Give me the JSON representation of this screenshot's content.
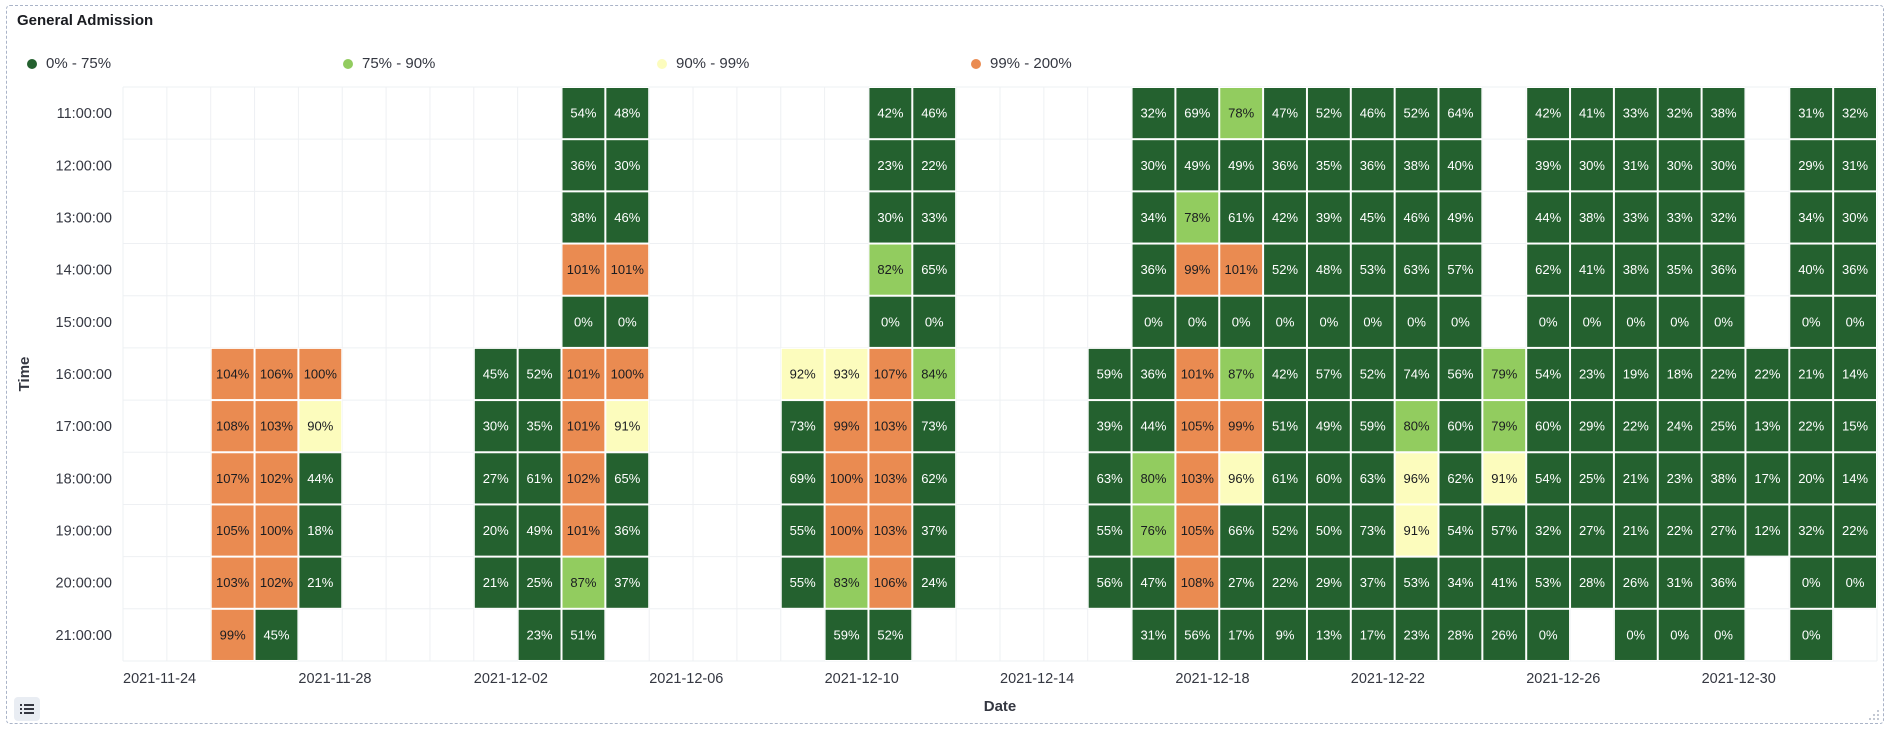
{
  "panel": {
    "title": "General Admission"
  },
  "chart_data": {
    "type": "heatmap",
    "title": "General Admission",
    "xlabel": "Date",
    "ylabel": "Time",
    "x_start": "2021-11-24",
    "x_ticks": [
      "2021-11-24",
      "2021-11-28",
      "2021-12-02",
      "2021-12-06",
      "2021-12-10",
      "2021-12-14",
      "2021-12-18",
      "2021-12-22",
      "2021-12-26",
      "2021-12-30"
    ],
    "y": [
      "11:00:00",
      "12:00:00",
      "13:00:00",
      "14:00:00",
      "15:00:00",
      "16:00:00",
      "17:00:00",
      "18:00:00",
      "19:00:00",
      "20:00:00",
      "21:00:00"
    ],
    "legend": [
      {
        "label": "0% - 75%",
        "color": "#24612f",
        "min": 0,
        "max": 75
      },
      {
        "label": "75% - 90%",
        "color": "#92cc5f",
        "min": 75,
        "max": 90
      },
      {
        "label": "90% - 99%",
        "color": "#fcfcbd",
        "min": 90,
        "max": 99
      },
      {
        "label": "99% - 200%",
        "color": "#ea8b51",
        "min": 99,
        "max": 200
      }
    ],
    "values": [
      [
        "",
        "",
        "",
        "",
        "",
        "",
        "",
        "",
        "",
        "",
        "54%",
        "48%",
        "",
        "",
        "",
        "",
        "",
        "42%",
        "46%",
        "",
        "",
        "",
        "",
        "32%",
        "69%",
        "78%",
        "47%",
        "52%",
        "46%",
        "52%",
        "64%",
        "",
        "42%",
        "41%",
        "33%",
        "32%",
        "38%",
        "",
        "31%",
        "32%"
      ],
      [
        "",
        "",
        "",
        "",
        "",
        "",
        "",
        "",
        "",
        "",
        "36%",
        "30%",
        "",
        "",
        "",
        "",
        "",
        "23%",
        "22%",
        "",
        "",
        "",
        "",
        "30%",
        "49%",
        "49%",
        "36%",
        "35%",
        "36%",
        "38%",
        "40%",
        "",
        "39%",
        "30%",
        "31%",
        "30%",
        "30%",
        "",
        "29%",
        "31%"
      ],
      [
        "",
        "",
        "",
        "",
        "",
        "",
        "",
        "",
        "",
        "",
        "38%",
        "46%",
        "",
        "",
        "",
        "",
        "",
        "30%",
        "33%",
        "",
        "",
        "",
        "",
        "34%",
        "78%",
        "61%",
        "42%",
        "39%",
        "45%",
        "46%",
        "49%",
        "",
        "44%",
        "38%",
        "33%",
        "33%",
        "32%",
        "",
        "34%",
        "30%"
      ],
      [
        "",
        "",
        "",
        "",
        "",
        "",
        "",
        "",
        "",
        "",
        "101%",
        "101%",
        "",
        "",
        "",
        "",
        "",
        "82%",
        "65%",
        "",
        "",
        "",
        "",
        "36%",
        "99%",
        "101%",
        "52%",
        "48%",
        "53%",
        "63%",
        "57%",
        "",
        "62%",
        "41%",
        "38%",
        "35%",
        "36%",
        "",
        "40%",
        "36%"
      ],
      [
        "",
        "",
        "",
        "",
        "",
        "",
        "",
        "",
        "",
        "",
        "0%",
        "0%",
        "",
        "",
        "",
        "",
        "",
        "0%",
        "0%",
        "",
        "",
        "",
        "",
        "0%",
        "0%",
        "0%",
        "0%",
        "0%",
        "0%",
        "0%",
        "0%",
        "",
        "0%",
        "0%",
        "0%",
        "0%",
        "0%",
        "",
        "0%",
        "0%"
      ],
      [
        "",
        "",
        "104%",
        "106%",
        "100%",
        "",
        "",
        "",
        "45%",
        "52%",
        "101%",
        "100%",
        "",
        "",
        "",
        "92%",
        "93%",
        "107%",
        "84%",
        "",
        "",
        "",
        "59%",
        "36%",
        "101%",
        "87%",
        "42%",
        "57%",
        "52%",
        "74%",
        "56%",
        "79%",
        "54%",
        "23%",
        "19%",
        "18%",
        "22%",
        "22%",
        "21%",
        "14%"
      ],
      [
        "",
        "",
        "108%",
        "103%",
        "90%",
        "",
        "",
        "",
        "30%",
        "35%",
        "101%",
        "91%",
        "",
        "",
        "",
        "73%",
        "99%",
        "103%",
        "73%",
        "",
        "",
        "",
        "39%",
        "44%",
        "105%",
        "99%",
        "51%",
        "49%",
        "59%",
        "80%",
        "60%",
        "79%",
        "60%",
        "29%",
        "22%",
        "24%",
        "25%",
        "13%",
        "22%",
        "15%"
      ],
      [
        "",
        "",
        "107%",
        "102%",
        "44%",
        "",
        "",
        "",
        "27%",
        "61%",
        "102%",
        "65%",
        "",
        "",
        "",
        "69%",
        "100%",
        "103%",
        "62%",
        "",
        "",
        "",
        "63%",
        "80%",
        "103%",
        "96%",
        "61%",
        "60%",
        "63%",
        "96%",
        "62%",
        "91%",
        "54%",
        "25%",
        "21%",
        "23%",
        "38%",
        "17%",
        "20%",
        "14%"
      ],
      [
        "",
        "",
        "105%",
        "100%",
        "18%",
        "",
        "",
        "",
        "20%",
        "49%",
        "101%",
        "36%",
        "",
        "",
        "",
        "55%",
        "100%",
        "103%",
        "37%",
        "",
        "",
        "",
        "55%",
        "76%",
        "105%",
        "66%",
        "52%",
        "50%",
        "73%",
        "91%",
        "54%",
        "57%",
        "32%",
        "27%",
        "21%",
        "22%",
        "27%",
        "12%",
        "32%",
        "22%"
      ],
      [
        "",
        "",
        "103%",
        "102%",
        "21%",
        "",
        "",
        "",
        "21%",
        "25%",
        "87%",
        "37%",
        "",
        "",
        "",
        "55%",
        "83%",
        "106%",
        "24%",
        "",
        "",
        "",
        "56%",
        "47%",
        "108%",
        "27%",
        "22%",
        "29%",
        "37%",
        "53%",
        "34%",
        "41%",
        "53%",
        "28%",
        "26%",
        "31%",
        "36%",
        "",
        "0%",
        "0%"
      ],
      [
        "",
        "",
        "99%",
        "45%",
        "",
        "",
        "",
        "",
        "",
        "23%",
        "51%",
        "",
        "",
        "",
        "",
        "",
        "59%",
        "52%",
        "",
        "",
        "",
        "",
        "",
        "31%",
        "56%",
        "17%",
        "9%",
        "13%",
        "17%",
        "23%",
        "28%",
        "26%",
        "0%",
        "",
        "0%",
        "0%",
        "0%",
        "",
        "0%",
        ""
      ]
    ]
  }
}
